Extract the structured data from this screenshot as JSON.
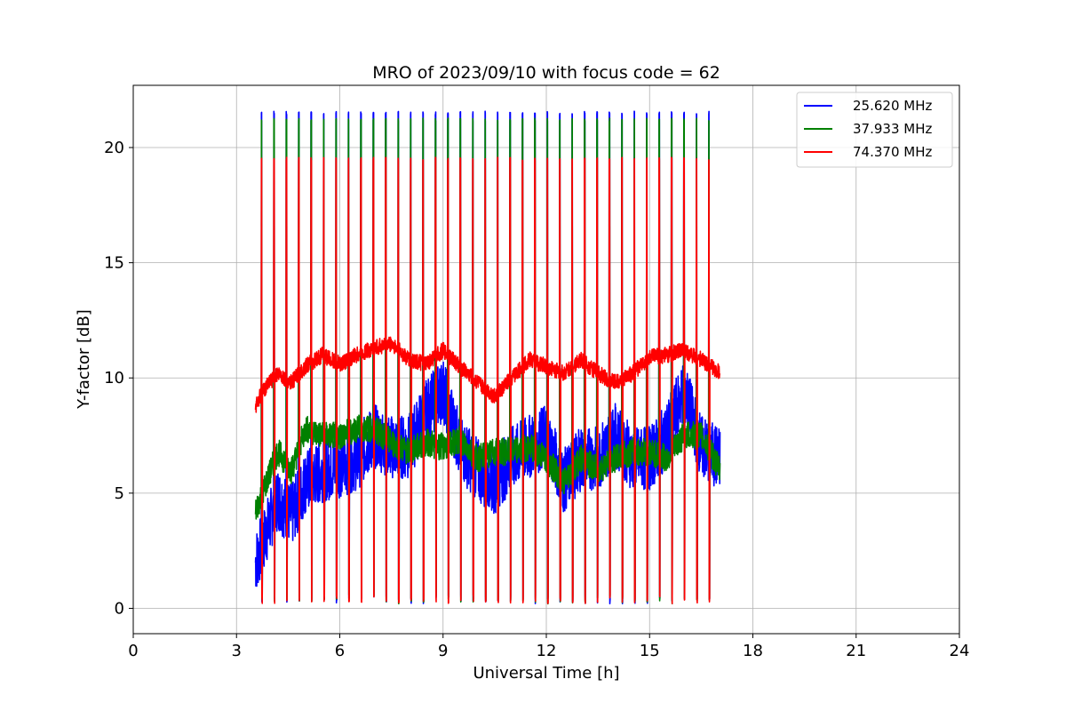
{
  "chart_data": {
    "type": "line",
    "title": "MRO of 2023/09/10 with focus code = 62",
    "xlabel": "Universal Time [h]",
    "ylabel": "Y-factor [dB]",
    "xlim": [
      0,
      24
    ],
    "ylim": [
      -1.1,
      22.7
    ],
    "xticks": [
      0,
      3,
      6,
      9,
      12,
      15,
      18,
      21,
      24
    ],
    "yticks": [
      0,
      5,
      10,
      15,
      20
    ],
    "grid": true,
    "legend_position": "top-right",
    "calibration": {
      "start_h": 3.72,
      "period_h": 0.361,
      "count": 37,
      "peak_db": {
        "25.620 MHz": 21.5,
        "37.933 MHz": 21.2,
        "74.370 MHz": 19.5
      },
      "floor_db": 0.2
    },
    "series": [
      {
        "name": "25.620 MHz",
        "color": "#0000ff",
        "x": [
          3.55,
          3.8,
          4.2,
          4.6,
          5.0,
          5.5,
          6.0,
          6.5,
          7.0,
          7.5,
          8.0,
          8.5,
          9.0,
          9.5,
          10.0,
          10.5,
          11.0,
          11.5,
          12.0,
          12.5,
          13.0,
          13.5,
          14.0,
          14.5,
          15.0,
          15.5,
          16.0,
          16.5,
          17.05
        ],
        "y": [
          2.0,
          3.0,
          4.8,
          4.0,
          5.5,
          6.0,
          6.2,
          6.5,
          7.5,
          7.0,
          7.0,
          8.5,
          9.5,
          7.0,
          6.0,
          5.5,
          6.5,
          7.0,
          7.5,
          5.5,
          6.5,
          6.5,
          7.5,
          6.5,
          6.5,
          7.5,
          9.5,
          7.0,
          6.5
        ]
      },
      {
        "name": "37.933 MHz",
        "color": "#008000",
        "x": [
          3.55,
          3.8,
          4.2,
          4.6,
          5.0,
          5.5,
          6.0,
          6.5,
          7.0,
          7.5,
          8.0,
          8.5,
          9.0,
          9.5,
          10.0,
          10.5,
          11.0,
          11.5,
          12.0,
          12.5,
          13.0,
          13.5,
          14.0,
          14.5,
          15.0,
          15.5,
          16.0,
          16.5,
          17.05
        ],
        "y": [
          4.2,
          5.2,
          6.8,
          6.0,
          7.8,
          7.5,
          7.5,
          7.8,
          7.8,
          7.2,
          6.8,
          7.2,
          7.0,
          7.3,
          6.5,
          6.8,
          6.8,
          7.0,
          6.5,
          5.5,
          6.5,
          6.0,
          6.5,
          6.8,
          6.8,
          6.5,
          7.5,
          7.5,
          6.0
        ]
      },
      {
        "name": "74.370 MHz",
        "color": "#ff0000",
        "x": [
          3.55,
          3.8,
          4.2,
          4.6,
          5.0,
          5.5,
          6.0,
          6.5,
          7.0,
          7.5,
          8.0,
          8.5,
          9.0,
          9.5,
          10.0,
          10.5,
          11.0,
          11.5,
          12.0,
          12.5,
          13.0,
          13.5,
          14.0,
          14.5,
          15.0,
          15.5,
          16.0,
          16.5,
          17.05
        ],
        "y": [
          8.8,
          9.5,
          10.2,
          9.8,
          10.5,
          11.0,
          10.6,
          11.0,
          11.3,
          11.5,
          10.8,
          10.6,
          11.2,
          10.5,
          9.8,
          9.2,
          10.0,
          10.8,
          10.5,
          10.2,
          10.8,
          10.2,
          9.8,
          10.2,
          10.9,
          11.0,
          11.2,
          10.8,
          10.2
        ]
      }
    ]
  }
}
